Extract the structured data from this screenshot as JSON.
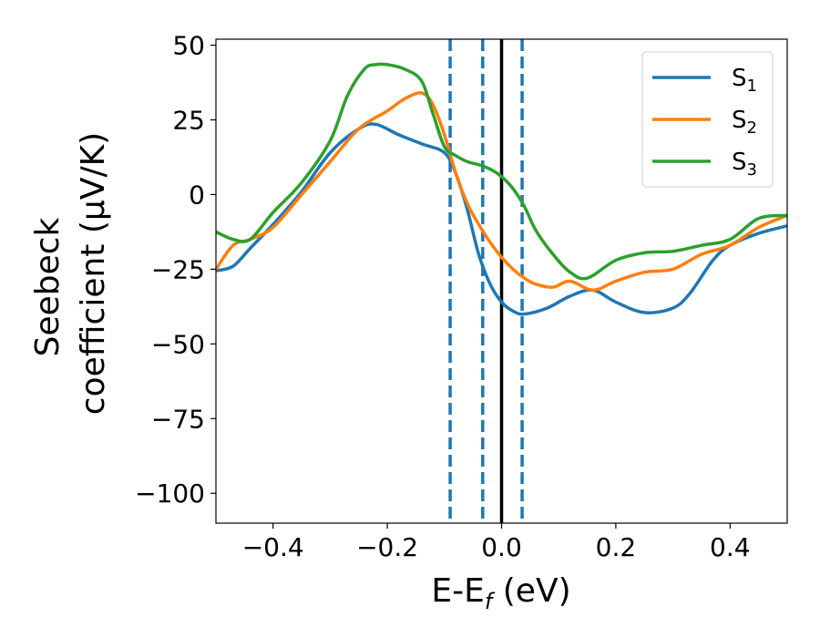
{
  "chart_data": {
    "type": "line",
    "title": "",
    "xlabel": {
      "main": "E-E",
      "sub": "f",
      "unit": " (eV)"
    },
    "ylabel": {
      "line1": "Seebeck",
      "line2": "coefficient  (μV/K)"
    },
    "xlim": [
      -0.5,
      0.5
    ],
    "ylim": [
      -110,
      52
    ],
    "xticks": [
      -0.4,
      -0.2,
      0.0,
      0.2,
      0.4
    ],
    "xtick_labels": [
      "−0.4",
      "−0.2",
      "0.0",
      "0.2",
      "0.4"
    ],
    "yticks": [
      -100,
      -75,
      -50,
      -25,
      0,
      25,
      50
    ],
    "ytick_labels": [
      "−100",
      "−75",
      "−50",
      "−25",
      "0",
      "25",
      "50"
    ],
    "grid": false,
    "legend_position": "top-right",
    "series": [
      {
        "name": "S1",
        "label_main": "S",
        "label_sub": "1",
        "color": "#1f77b4",
        "x": [
          -0.5,
          -0.47,
          -0.44,
          -0.4,
          -0.35,
          -0.3,
          -0.25,
          -0.22,
          -0.18,
          -0.14,
          -0.1,
          -0.08,
          -0.06,
          -0.04,
          -0.02,
          0.0,
          0.02,
          0.04,
          0.08,
          0.12,
          0.16,
          0.2,
          0.25,
          0.3,
          0.33,
          0.37,
          0.4,
          0.45,
          0.5
        ],
        "y": [
          -25.5,
          -24,
          -18,
          -10,
          1,
          14,
          22,
          23.5,
          20,
          17,
          14,
          7,
          -5,
          -20,
          -30,
          -36,
          -39,
          -40,
          -38,
          -34,
          -32,
          -36,
          -39.5,
          -38,
          -33,
          -22,
          -17,
          -13,
          -10.5
        ]
      },
      {
        "name": "S2",
        "label_main": "S",
        "label_sub": "2",
        "color": "#ff7f0e",
        "x": [
          -0.5,
          -0.47,
          -0.44,
          -0.4,
          -0.35,
          -0.3,
          -0.25,
          -0.2,
          -0.17,
          -0.14,
          -0.12,
          -0.1,
          -0.08,
          -0.06,
          -0.04,
          -0.02,
          0.0,
          0.02,
          0.04,
          0.06,
          0.09,
          0.12,
          0.16,
          0.2,
          0.25,
          0.3,
          0.35,
          0.4,
          0.45,
          0.5
        ],
        "y": [
          -25,
          -17,
          -15,
          -11,
          0,
          11,
          22,
          28,
          32,
          34,
          30,
          20,
          7,
          -3,
          -10,
          -16,
          -21,
          -25,
          -28,
          -30,
          -31,
          -29,
          -32,
          -29,
          -26,
          -25,
          -20,
          -17,
          -11,
          -7
        ]
      },
      {
        "name": "S3",
        "label_main": "S",
        "label_sub": "3",
        "color": "#2ca02c",
        "x": [
          -0.5,
          -0.47,
          -0.44,
          -0.4,
          -0.35,
          -0.3,
          -0.27,
          -0.24,
          -0.22,
          -0.2,
          -0.17,
          -0.14,
          -0.12,
          -0.1,
          -0.08,
          -0.06,
          -0.04,
          -0.02,
          0.0,
          0.02,
          0.04,
          0.06,
          0.09,
          0.12,
          0.15,
          0.2,
          0.25,
          0.3,
          0.35,
          0.4,
          0.45,
          0.5
        ],
        "y": [
          -12.5,
          -15,
          -15,
          -6,
          4,
          18,
          33,
          42,
          43.5,
          43.5,
          42,
          38,
          27,
          16,
          13,
          11,
          10,
          8.5,
          6,
          2,
          -4,
          -12,
          -20,
          -26,
          -28,
          -22,
          -19.5,
          -19,
          -17,
          -15,
          -8,
          -7
        ]
      }
    ],
    "vlines": [
      {
        "name": "vline-dashed-1",
        "x": -0.09,
        "style": "dashed",
        "color": "#1f77b4"
      },
      {
        "name": "vline-dashed-2",
        "x": -0.033,
        "style": "dashed",
        "color": "#1f77b4"
      },
      {
        "name": "vline-fermi",
        "x": 0.0,
        "style": "solid",
        "color": "#000000"
      },
      {
        "name": "vline-dashed-3",
        "x": 0.036,
        "style": "dashed",
        "color": "#1f77b4"
      }
    ]
  }
}
